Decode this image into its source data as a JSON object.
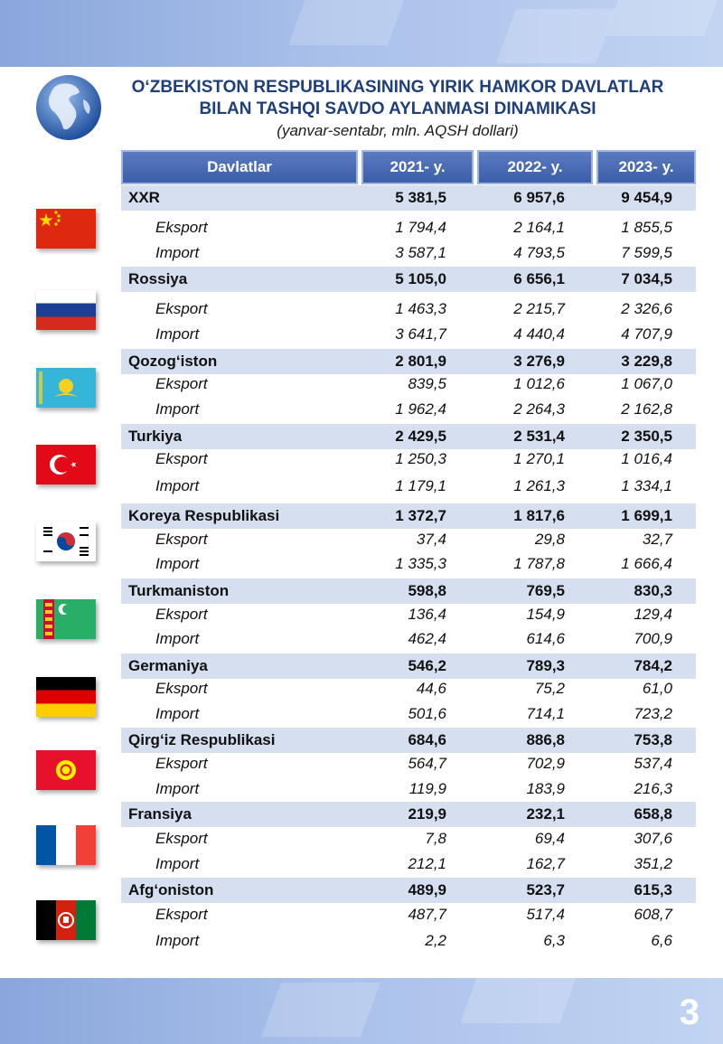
{
  "title_line1": "O‘ZBEKISTON RESPUBLIKASINING YIRIK HAMKOR DAVLATLAR",
  "title_line2": "BILAN TASHQI SAVDO AYLANMASI DINAMIKASI",
  "subtitle": "(yanvar-sentabr, mln. AQSH dollari)",
  "header": {
    "name": "Davlatlar",
    "y1": "2021- y.",
    "y2": "2022- y.",
    "y3": "2023- y."
  },
  "page_number": "3",
  "countries": [
    {
      "name": "XXR",
      "flag": "china-flag-icon",
      "total": [
        "5 381,5",
        "6 957,6",
        "9 454,9"
      ],
      "export_label": "Eksport",
      "export": [
        "1 794,4",
        "2 164,1",
        "1 855,5"
      ],
      "import_label": "Import",
      "import": [
        "3 587,1",
        "4 793,5",
        "7 599,5"
      ]
    },
    {
      "name": "Rossiya",
      "flag": "russia-flag-icon",
      "total": [
        "5 105,0",
        "6 656,1",
        "7 034,5"
      ],
      "export_label": "Eksport",
      "export": [
        "1 463,3",
        "2 215,7",
        "2 326,6"
      ],
      "import_label": "Import",
      "import": [
        "3 641,7",
        "4 440,4",
        "4 707,9"
      ]
    },
    {
      "name": "Qozog‘iston",
      "flag": "kazakhstan-flag-icon",
      "total": [
        "2 801,9",
        "3 276,9",
        "3 229,8"
      ],
      "export_label": "Eksport",
      "export": [
        "839,5",
        "1 012,6",
        "1 067,0"
      ],
      "import_label": "Import",
      "import": [
        "1 962,4",
        "2 264,3",
        "2 162,8"
      ]
    },
    {
      "name": "Turkiya",
      "flag": "turkey-flag-icon",
      "total": [
        "2 429,5",
        "2 531,4",
        "2 350,5"
      ],
      "export_label": "Eksport",
      "export": [
        "1 250,3",
        "1 270,1",
        "1 016,4"
      ],
      "import_label": "Import",
      "import": [
        "1 179,1",
        "1 261,3",
        "1 334,1"
      ]
    },
    {
      "name": "Koreya Respublikasi",
      "flag": "south-korea-flag-icon",
      "total": [
        "1 372,7",
        "1 817,6",
        "1 699,1"
      ],
      "export_label": "Eksport",
      "export": [
        "37,4",
        "29,8",
        "32,7"
      ],
      "import_label": "Import",
      "import": [
        "1 335,3",
        "1 787,8",
        "1 666,4"
      ]
    },
    {
      "name": "Turkmaniston",
      "flag": "turkmenistan-flag-icon",
      "total": [
        "598,8",
        "769,5",
        "830,3"
      ],
      "export_label": "Eksport",
      "export": [
        "136,4",
        "154,9",
        "129,4"
      ],
      "import_label": "Import",
      "import": [
        "462,4",
        "614,6",
        "700,9"
      ]
    },
    {
      "name": "Germaniya",
      "flag": "germany-flag-icon",
      "total": [
        "546,2",
        "789,3",
        "784,2"
      ],
      "export_label": "Eksport",
      "export": [
        "44,6",
        "75,2",
        "61,0"
      ],
      "import_label": "Import",
      "import": [
        "501,6",
        "714,1",
        "723,2"
      ]
    },
    {
      "name": "Qirg‘iz Respublikasi",
      "flag": "kyrgyzstan-flag-icon",
      "total": [
        "684,6",
        "886,8",
        "753,8"
      ],
      "export_label": "Eksport",
      "export": [
        "564,7",
        "702,9",
        "537,4"
      ],
      "import_label": "Import",
      "import": [
        "119,9",
        "183,9",
        "216,3"
      ]
    },
    {
      "name": "Fransiya",
      "flag": "france-flag-icon",
      "total": [
        "219,9",
        "232,1",
        "658,8"
      ],
      "export_label": "Eksport",
      "export": [
        "7,8",
        "69,4",
        "307,6"
      ],
      "import_label": "Import",
      "import": [
        "212,1",
        "162,7",
        "351,2"
      ]
    },
    {
      "name": "Afg‘oniston",
      "flag": "afghanistan-flag-icon",
      "total": [
        "489,9",
        "523,7",
        "615,3"
      ],
      "export_label": "Eksport",
      "export": [
        "487,7",
        "517,4",
        "608,7"
      ],
      "import_label": "Import",
      "import": [
        "2,2",
        "6,3",
        "6,6"
      ]
    }
  ]
}
